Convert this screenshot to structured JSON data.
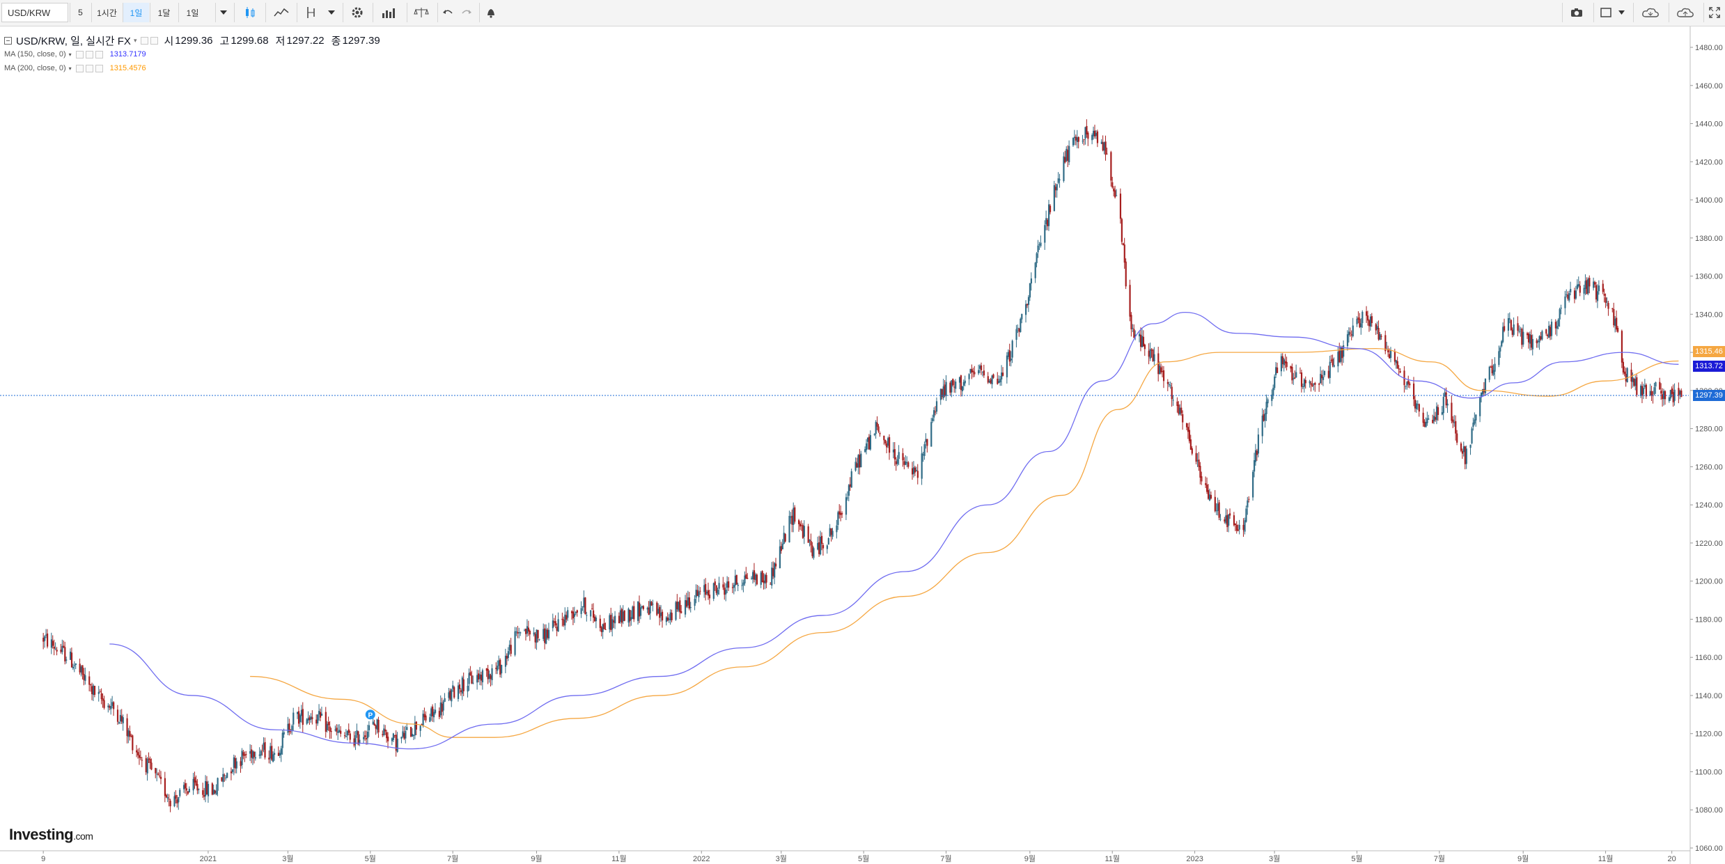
{
  "toolbar": {
    "symbol": "USD/KRW",
    "items": [
      "5",
      "1시간",
      "1일",
      "1달",
      "1일"
    ],
    "active_index": 2
  },
  "legend": {
    "title": "USD/KRW, 일, 실시간 FX",
    "open_label": "시",
    "open": "1299.36",
    "high_label": "고",
    "high": "1299.68",
    "low_label": "저",
    "low": "1297.22",
    "close_label": "종",
    "close": "1297.39",
    "ma150_label": "MA (150, close, 0)",
    "ma150_value": "1313.7179",
    "ma150_color": "#3333ff",
    "ma200_label": "MA (200, close, 0)",
    "ma200_value": "1315.4576",
    "ma200_color": "#ff9900"
  },
  "price_tags": {
    "ma200": "1315.46",
    "ma150": "1313.72",
    "last": "1297.39"
  },
  "logo": {
    "name": "Investing",
    "suffix": ".com"
  },
  "marker": {
    "label": "P"
  },
  "colors": {
    "up": "#2f6b86",
    "down": "#a61e1e",
    "ma150": "#6f6cf0",
    "ma200": "#f5a742",
    "last_line": "#1e6bd6"
  },
  "chart_data": {
    "type": "candlestick",
    "y_axis_ticks": [
      "1480.00",
      "1460.00",
      "1440.00",
      "1420.00",
      "1400.00",
      "1380.00",
      "1360.00",
      "1340.00",
      "1320.00",
      "1300.00",
      "1280.00",
      "1260.00",
      "1240.00",
      "1220.00",
      "1200.00",
      "1180.00",
      "1160.00",
      "1140.00",
      "1120.00",
      "1100.00",
      "1080.00",
      "1060.00"
    ],
    "ylim": [
      1060,
      1480
    ],
    "x_axis_labels": [
      "9",
      "2021",
      "3월",
      "5월",
      "7월",
      "9월",
      "11월",
      "2022",
      "3월",
      "5월",
      "7월",
      "9월",
      "11월",
      "2023",
      "3월",
      "5월",
      "7월",
      "9월",
      "11월",
      "20"
    ],
    "close_path": [
      [
        "2020-09-01",
        1170
      ],
      [
        "2020-09-20",
        1160
      ],
      [
        "2020-10-10",
        1140
      ],
      [
        "2020-10-25",
        1132
      ],
      [
        "2020-11-10",
        1110
      ],
      [
        "2020-11-25",
        1095
      ],
      [
        "2020-12-05",
        1085
      ],
      [
        "2020-12-20",
        1092
      ],
      [
        "2021-01-05",
        1090
      ],
      [
        "2021-01-20",
        1105
      ],
      [
        "2021-02-05",
        1112
      ],
      [
        "2021-02-20",
        1110
      ],
      [
        "2021-03-05",
        1128
      ],
      [
        "2021-03-20",
        1130
      ],
      [
        "2021-04-05",
        1120
      ],
      [
        "2021-04-20",
        1117
      ],
      [
        "2021-05-05",
        1125
      ],
      [
        "2021-05-20",
        1115
      ],
      [
        "2021-06-05",
        1125
      ],
      [
        "2021-06-20",
        1132
      ],
      [
        "2021-07-05",
        1145
      ],
      [
        "2021-07-20",
        1150
      ],
      [
        "2021-08-05",
        1155
      ],
      [
        "2021-08-20",
        1175
      ],
      [
        "2021-09-05",
        1170
      ],
      [
        "2021-09-20",
        1180
      ],
      [
        "2021-10-05",
        1188
      ],
      [
        "2021-10-20",
        1176
      ],
      [
        "2021-11-05",
        1182
      ],
      [
        "2021-11-20",
        1187
      ],
      [
        "2021-12-05",
        1180
      ],
      [
        "2021-12-20",
        1189
      ],
      [
        "2022-01-05",
        1195
      ],
      [
        "2022-01-20",
        1197
      ],
      [
        "2022-02-05",
        1203
      ],
      [
        "2022-02-20",
        1200
      ],
      [
        "2022-03-10",
        1236
      ],
      [
        "2022-03-25",
        1215
      ],
      [
        "2022-04-10",
        1228
      ],
      [
        "2022-04-25",
        1260
      ],
      [
        "2022-05-10",
        1280
      ],
      [
        "2022-05-25",
        1265
      ],
      [
        "2022-06-10",
        1255
      ],
      [
        "2022-06-25",
        1298
      ],
      [
        "2022-07-10",
        1303
      ],
      [
        "2022-07-25",
        1310
      ],
      [
        "2022-08-10",
        1305
      ],
      [
        "2022-08-25",
        1335
      ],
      [
        "2022-09-10",
        1380
      ],
      [
        "2022-09-25",
        1420
      ],
      [
        "2022-10-10",
        1435
      ],
      [
        "2022-10-25",
        1430
      ],
      [
        "2022-11-05",
        1400
      ],
      [
        "2022-11-15",
        1330
      ],
      [
        "2022-11-25",
        1325
      ],
      [
        "2022-12-10",
        1305
      ],
      [
        "2022-12-25",
        1280
      ],
      [
        "2023-01-10",
        1245
      ],
      [
        "2023-01-25",
        1232
      ],
      [
        "2023-02-05",
        1225
      ],
      [
        "2023-02-20",
        1285
      ],
      [
        "2023-03-05",
        1315
      ],
      [
        "2023-03-20",
        1305
      ],
      [
        "2023-04-05",
        1305
      ],
      [
        "2023-04-20",
        1320
      ],
      [
        "2023-05-05",
        1340
      ],
      [
        "2023-05-20",
        1328
      ],
      [
        "2023-06-05",
        1305
      ],
      [
        "2023-06-20",
        1280
      ],
      [
        "2023-07-05",
        1295
      ],
      [
        "2023-07-20",
        1265
      ],
      [
        "2023-08-05",
        1305
      ],
      [
        "2023-08-20",
        1335
      ],
      [
        "2023-09-05",
        1325
      ],
      [
        "2023-09-20",
        1330
      ],
      [
        "2023-10-05",
        1350
      ],
      [
        "2023-10-20",
        1355
      ],
      [
        "2023-11-05",
        1345
      ],
      [
        "2023-11-15",
        1310
      ],
      [
        "2023-11-25",
        1300
      ],
      [
        "2023-12-10",
        1300
      ],
      [
        "2023-12-25",
        1297
      ]
    ],
    "ma150_path": [
      [
        "2020-10-20",
        1167
      ],
      [
        "2020-12-20",
        1140
      ],
      [
        "2021-02-20",
        1122
      ],
      [
        "2021-04-20",
        1115
      ],
      [
        "2021-06-01",
        1112
      ],
      [
        "2021-08-01",
        1125
      ],
      [
        "2021-10-01",
        1140
      ],
      [
        "2021-12-01",
        1150
      ],
      [
        "2022-02-01",
        1165
      ],
      [
        "2022-04-01",
        1182
      ],
      [
        "2022-06-01",
        1205
      ],
      [
        "2022-08-01",
        1240
      ],
      [
        "2022-09-15",
        1268
      ],
      [
        "2022-10-25",
        1305
      ],
      [
        "2022-12-01",
        1335
      ],
      [
        "2022-12-25",
        1341
      ],
      [
        "2023-02-01",
        1330
      ],
      [
        "2023-03-15",
        1328
      ],
      [
        "2023-05-01",
        1322
      ],
      [
        "2023-06-15",
        1305
      ],
      [
        "2023-07-25",
        1296
      ],
      [
        "2023-08-25",
        1304
      ],
      [
        "2023-10-01",
        1315
      ],
      [
        "2023-11-15",
        1320
      ],
      [
        "2023-12-25",
        1313.72
      ]
    ],
    "ma200_path": [
      [
        "2021-02-01",
        1150
      ],
      [
        "2021-04-10",
        1138
      ],
      [
        "2021-06-01",
        1125
      ],
      [
        "2021-07-01",
        1118
      ],
      [
        "2021-08-01",
        1118
      ],
      [
        "2021-10-01",
        1128
      ],
      [
        "2021-12-01",
        1140
      ],
      [
        "2022-02-01",
        1155
      ],
      [
        "2022-04-01",
        1173
      ],
      [
        "2022-06-01",
        1192
      ],
      [
        "2022-08-01",
        1215
      ],
      [
        "2022-09-25",
        1245
      ],
      [
        "2022-11-05",
        1290
      ],
      [
        "2022-12-10",
        1315
      ],
      [
        "2023-01-20",
        1320
      ],
      [
        "2023-03-15",
        1320
      ],
      [
        "2023-05-15",
        1322
      ],
      [
        "2023-06-25",
        1315
      ],
      [
        "2023-08-01",
        1300
      ],
      [
        "2023-09-20",
        1297
      ],
      [
        "2023-11-01",
        1305
      ],
      [
        "2023-12-25",
        1315.46
      ]
    ]
  }
}
